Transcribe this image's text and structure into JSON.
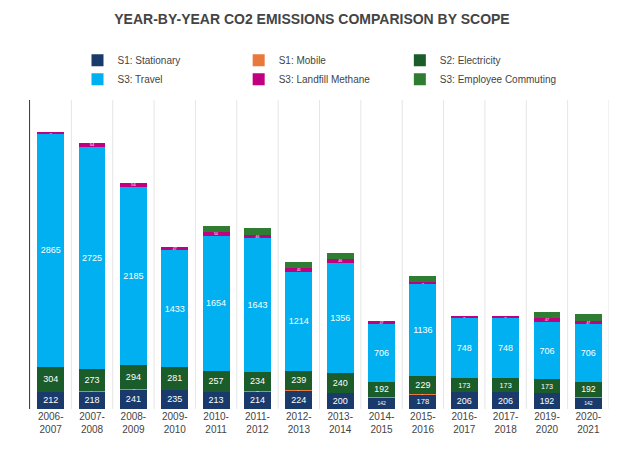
{
  "chart_data": {
    "type": "bar",
    "stacked": true,
    "title": "YEAR-BY-YEAR CO2 EMISSIONS COMPARISON BY SCOPE",
    "categories": [
      "2006-\n2007",
      "2007-\n2008",
      "2008-\n2009",
      "2009-\n2010",
      "2010-\n2011",
      "2011-\n2012",
      "2012-\n2013",
      "2013-\n2014",
      "2014-\n2015",
      "2015-\n2016",
      "2016-\n2017",
      "2017-\n2018",
      "2019-\n2020",
      "2020-\n2021"
    ],
    "series": [
      {
        "name": "S1: Stationary",
        "color": "#1a3a6b",
        "values": [
          212,
          218,
          241,
          235,
          213,
          214,
          224,
          200,
          142,
          178,
          206,
          206,
          192,
          142
        ]
      },
      {
        "name": "S1: Mobile",
        "color": "#e8783c",
        "values": [
          2,
          2,
          7,
          2,
          1,
          8,
          9,
          1,
          1,
          2,
          0,
          0,
          0,
          1
        ]
      },
      {
        "name": "S2: Electricity",
        "color": "#1a5c2a",
        "values": [
          304,
          273,
          294,
          281,
          257,
          234,
          239,
          240,
          192,
          229,
          173,
          173,
          173,
          192
        ]
      },
      {
        "name": "S3: Travel",
        "color": "#00b0f0",
        "values": [
          2865,
          2725,
          2185,
          1433,
          1654,
          1643,
          1214,
          1356,
          706,
          1136,
          748,
          748,
          706,
          706
        ]
      },
      {
        "name": "S3: Landfill Methane",
        "color": "#c00080",
        "values": [
          18,
          54,
          56,
          47,
          50,
          46,
          45,
          46,
          47,
          15,
          15,
          15,
          47,
          47
        ]
      },
      {
        "name": "S3: Employee Commuting",
        "color": "#2e7d32",
        "values": [
          0,
          0,
          0,
          0,
          76,
          76,
          76,
          76,
          0,
          76,
          0,
          0,
          76,
          76
        ]
      }
    ],
    "ylim": [
      0,
      3800
    ],
    "tick_labels": "x",
    "grid": true,
    "legend": "top",
    "data_labels": true
  }
}
